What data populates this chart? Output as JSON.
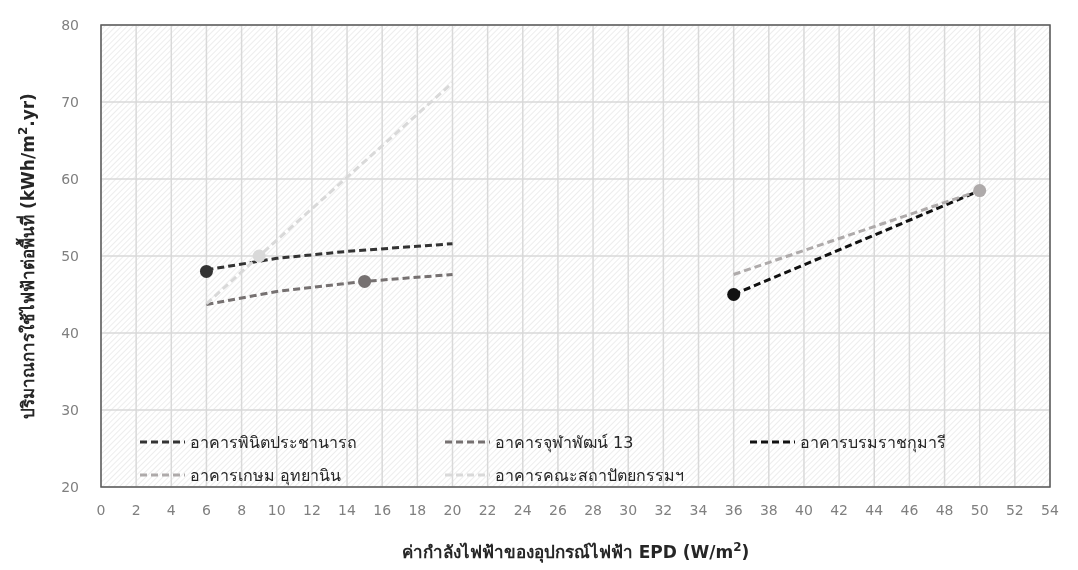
{
  "chart_data": {
    "type": "scatter",
    "xlabel": "ค่ากำลังไฟฟ้าของอุปกรณ์ไฟฟ้า EPD (W/m$^{2}$)",
    "ylabel": "ปริมาณการใช้ไฟฟ้าต่อพื้นที่ (kWh/m$^{2}$.yr)",
    "xlim": [
      0,
      54
    ],
    "xticks": [
      0,
      2,
      4,
      6,
      8,
      10,
      12,
      14,
      16,
      18,
      20,
      22,
      24,
      26,
      28,
      30,
      32,
      34,
      36,
      38,
      40,
      42,
      44,
      46,
      48,
      50,
      52,
      54
    ],
    "ylim": [
      20,
      80
    ],
    "yticks": [
      20,
      30,
      40,
      50,
      60,
      70,
      80
    ],
    "grid": true,
    "legend": "bottom",
    "series": [
      {
        "name": "อาคารพินิตประชานารถ",
        "type": "line",
        "line_style": "dashed",
        "color": "#333333",
        "x": [
          6,
          10,
          14,
          20
        ],
        "values": [
          48.2,
          49.7,
          50.6,
          51.6
        ]
      },
      {
        "name": "อาคารจุฬาพัฒน์ 13",
        "type": "line",
        "line_style": "dashed",
        "color": "#767171",
        "x": [
          6,
          10,
          15,
          20
        ],
        "values": [
          43.7,
          45.4,
          46.7,
          47.6
        ]
      },
      {
        "name": "อาคารบรมราชกุมารี",
        "type": "line",
        "line_style": "dashed",
        "color": "#111111",
        "x": [
          36,
          50
        ],
        "values": [
          45,
          58.5
        ]
      },
      {
        "name": "อาคารเกษม อุทยานิน",
        "type": "line",
        "line_style": "dashed",
        "color": "#aeaaaa",
        "x": [
          36,
          50
        ],
        "values": [
          47.6,
          58.5
        ]
      },
      {
        "name": "อาคารคณะสถาปัตยกรรมฯ",
        "type": "line",
        "line_style": "dashed",
        "color": "#d9d9d9",
        "x": [
          6,
          9,
          20
        ],
        "values": [
          43.8,
          50,
          72.5
        ]
      },
      {
        "type": "scatter",
        "marker": "circle",
        "color": "#333333",
        "x": [
          6
        ],
        "values": [
          48
        ]
      },
      {
        "type": "scatter",
        "marker": "circle",
        "color": "#767171",
        "x": [
          15
        ],
        "values": [
          46.7
        ]
      },
      {
        "type": "scatter",
        "marker": "circle",
        "color": "#111111",
        "x": [
          36
        ],
        "values": [
          45
        ]
      },
      {
        "type": "scatter",
        "marker": "circle",
        "color": "#aeaaaa",
        "x": [
          50
        ],
        "values": [
          58.5
        ]
      },
      {
        "type": "scatter",
        "marker": "circle",
        "color": "#d9d9d9",
        "x": [
          9
        ],
        "values": [
          50
        ]
      }
    ]
  }
}
